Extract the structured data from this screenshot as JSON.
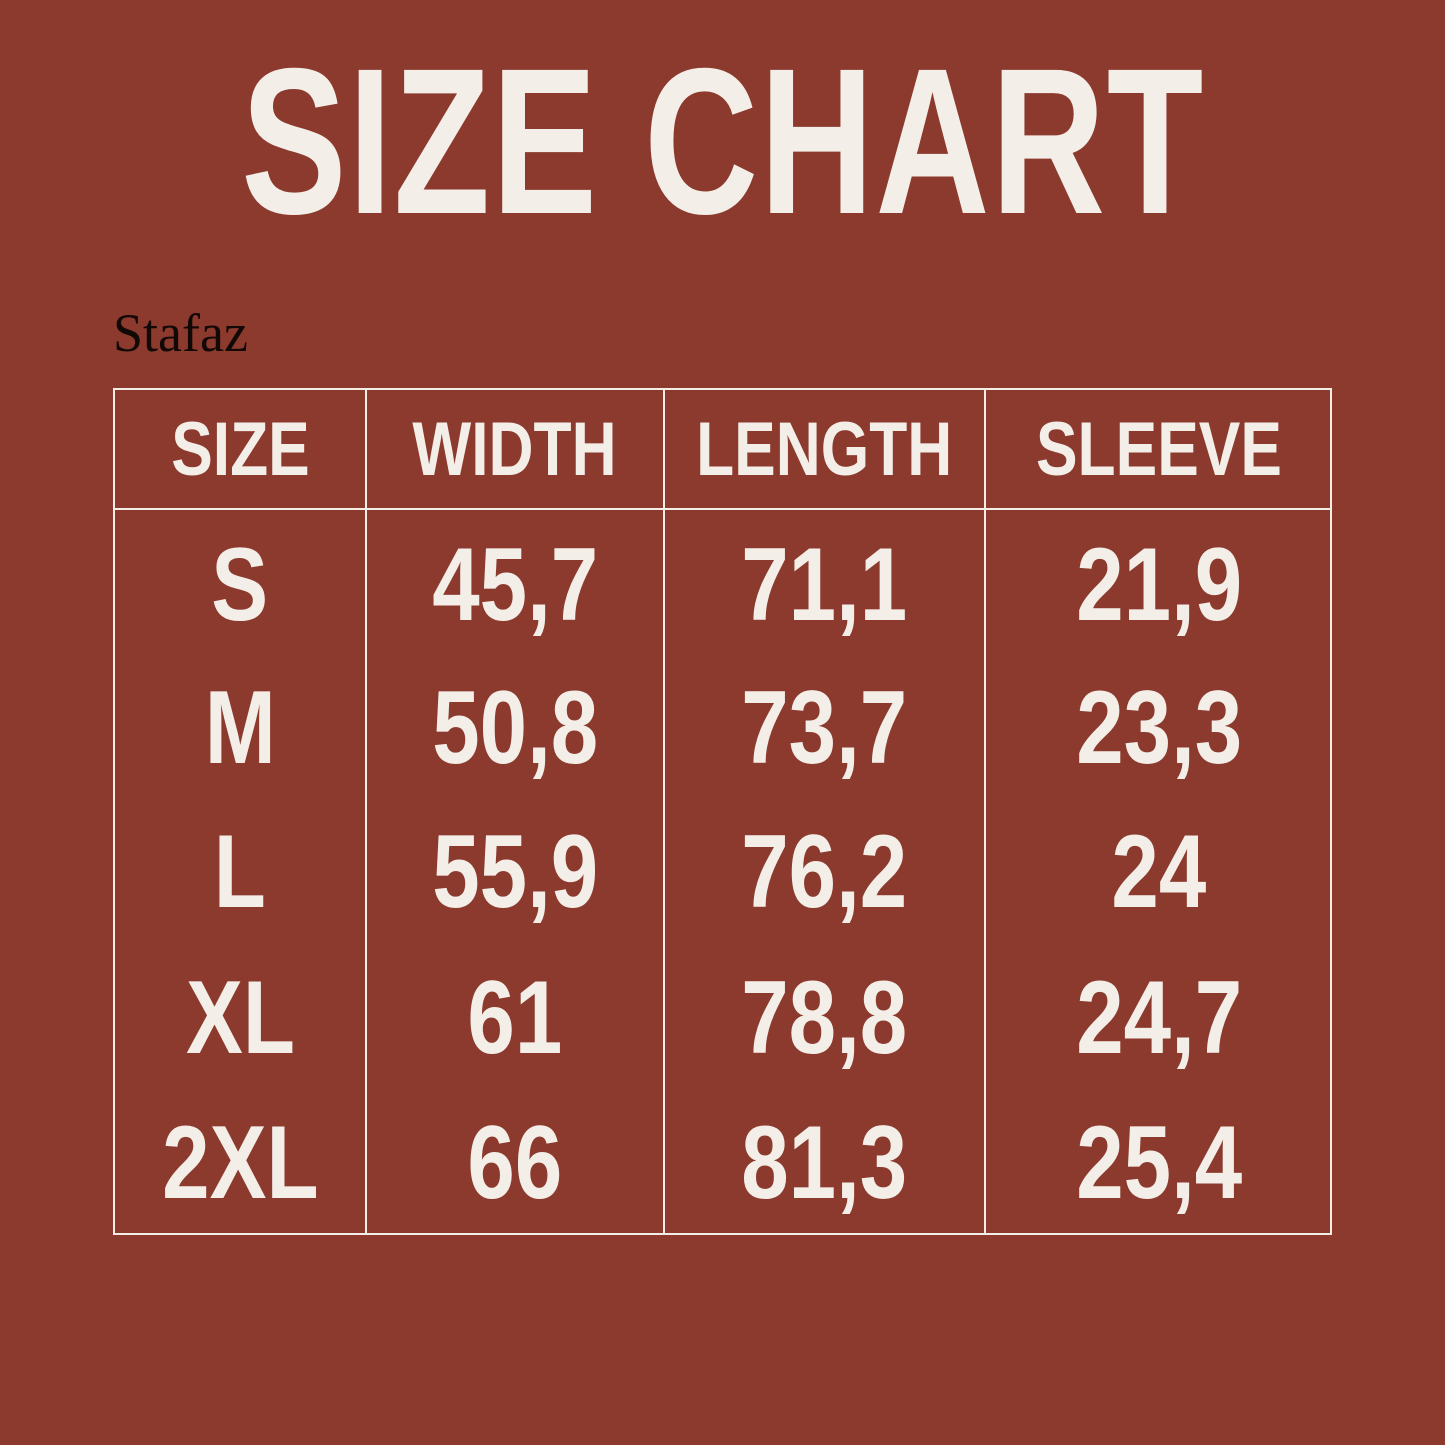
{
  "title": "SIZE CHART",
  "brand": "Stafaz",
  "colors": {
    "background": "#8b3a2d",
    "text": "#f4eee8",
    "brand": "#120806"
  },
  "table": {
    "headers": [
      "SIZE",
      "WIDTH",
      "LENGTH",
      "SLEEVE"
    ],
    "rows": [
      [
        "S",
        "45,7",
        "71,1",
        "21,9"
      ],
      [
        "M",
        "50,8",
        "73,7",
        "23,3"
      ],
      [
        "L",
        "55,9",
        "76,2",
        "24"
      ],
      [
        "XL",
        "61",
        "78,8",
        "24,7"
      ],
      [
        "2XL",
        "66",
        "81,3",
        "25,4"
      ]
    ]
  }
}
